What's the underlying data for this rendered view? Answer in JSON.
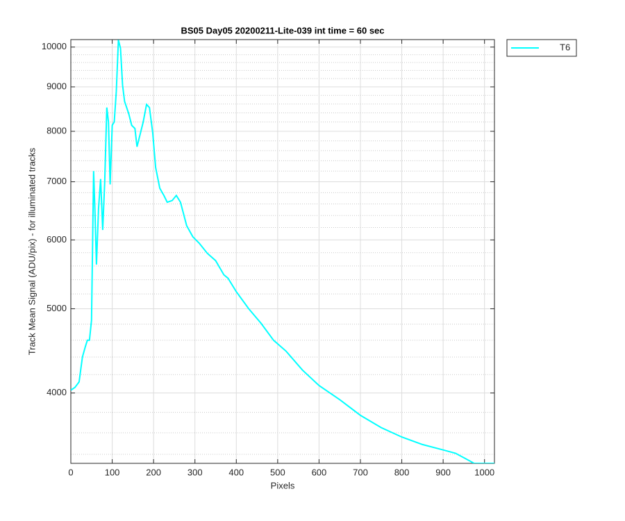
{
  "chart_data": {
    "type": "line",
    "title": "BS05 Day05 20200211-Lite-039 int time = 60 sec",
    "xlabel": "Pixels",
    "ylabel": "Track Mean Signal (ADU/pix) - for illuminated tracks",
    "x": [
      0,
      10,
      20,
      28,
      35,
      40,
      45,
      50,
      55,
      58,
      62,
      67,
      72,
      77,
      82,
      87,
      91,
      95,
      100,
      105,
      110,
      115,
      120,
      125,
      130,
      140,
      147,
      155,
      160,
      167,
      175,
      183,
      190,
      198,
      205,
      215,
      225,
      233,
      245,
      255,
      265,
      280,
      295,
      310,
      330,
      350,
      370,
      380,
      400,
      430,
      460,
      490,
      520,
      560,
      600,
      650,
      700,
      750,
      800,
      850,
      900,
      930,
      950,
      975,
      1024
    ],
    "series": [
      {
        "name": "T6",
        "color": "#00ffff",
        "values": [
          4030,
          4060,
          4120,
          4400,
          4520,
          4600,
          4600,
          4850,
          7200,
          6520,
          5620,
          6520,
          7050,
          6160,
          7000,
          8520,
          8200,
          6950,
          8130,
          8200,
          8900,
          10190,
          9970,
          9040,
          8660,
          8380,
          8130,
          8060,
          7680,
          7920,
          8200,
          8590,
          8520,
          7970,
          7270,
          6880,
          6750,
          6630,
          6660,
          6750,
          6630,
          6230,
          6050,
          5950,
          5790,
          5680,
          5470,
          5420,
          5230,
          5000,
          4810,
          4600,
          4470,
          4250,
          4080,
          3930,
          3770,
          3650,
          3560,
          3490,
          3440,
          3410,
          3370,
          3320,
          3320
        ]
      }
    ],
    "xlim": [
      0,
      1024
    ],
    "ylim": [
      3320,
      10200
    ],
    "ylog": true,
    "xticks": [
      0,
      100,
      200,
      300,
      400,
      500,
      600,
      700,
      800,
      900,
      1000
    ],
    "yticks": [
      4000,
      5000,
      6000,
      7000,
      8000,
      9000,
      10000
    ],
    "yminorticks": [
      3400,
      3600,
      3800,
      4200,
      4400,
      4600,
      4800,
      5200,
      5400,
      5600,
      5800,
      6200,
      6400,
      6600,
      6800,
      7200,
      7400,
      7600,
      7800,
      8200,
      8400,
      8600,
      8800,
      9200,
      9400,
      9600,
      9800
    ],
    "grid": true,
    "legend": "outside-top-right"
  }
}
